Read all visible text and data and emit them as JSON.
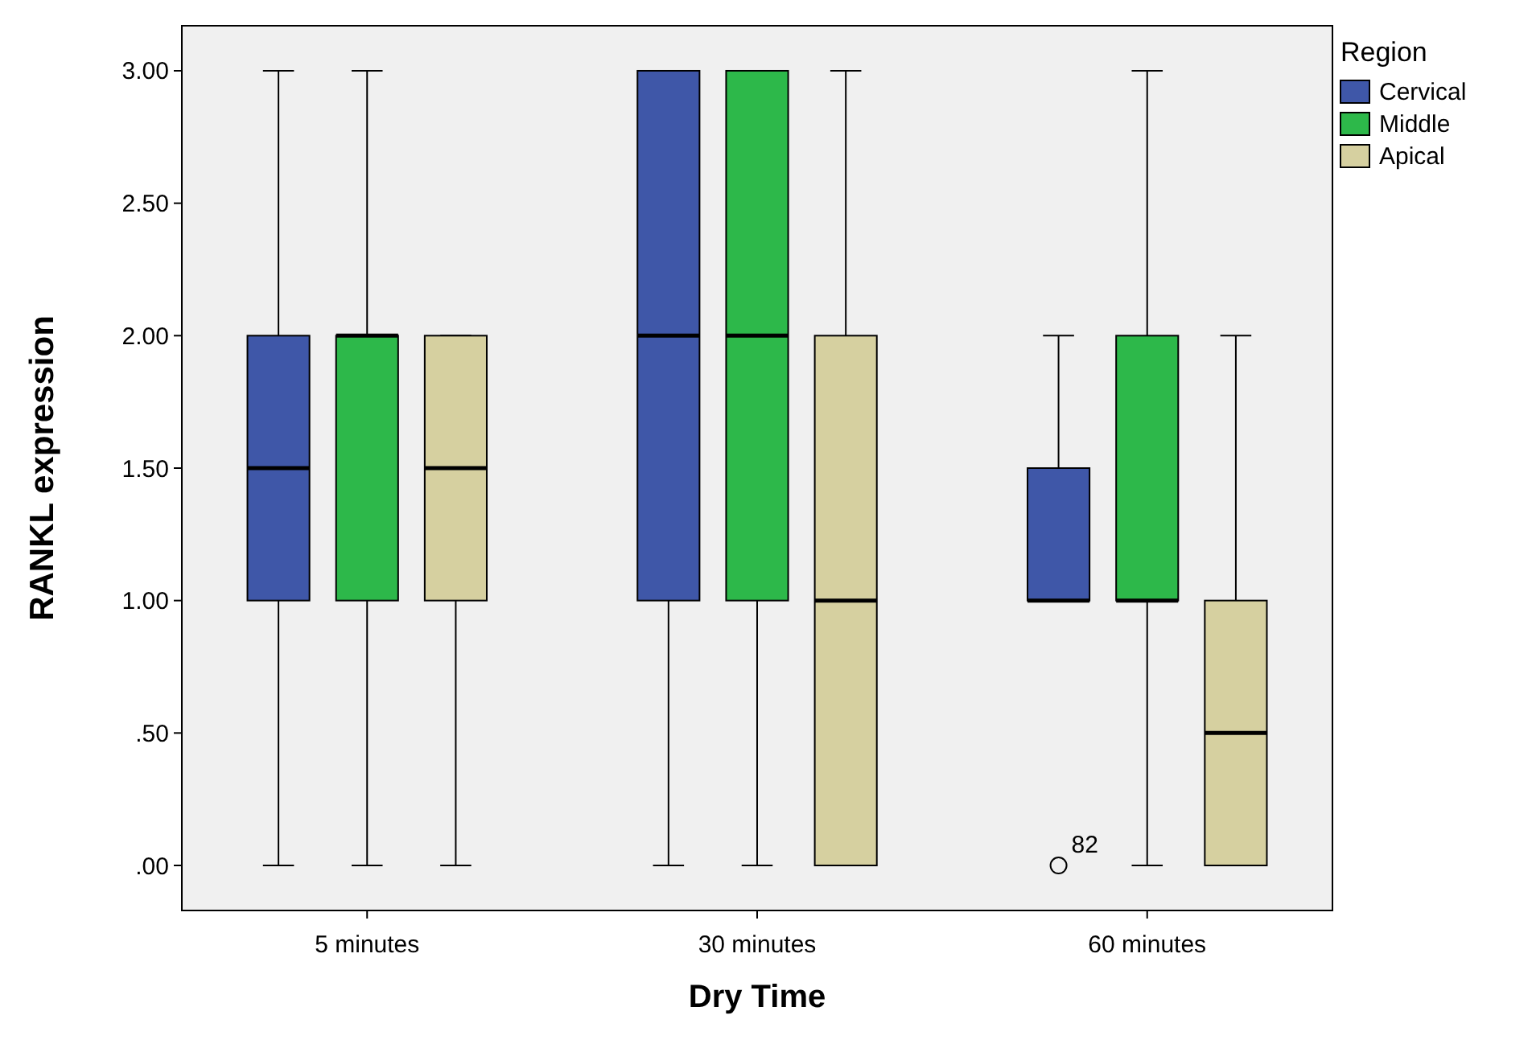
{
  "chart_data": {
    "type": "box",
    "xlabel": "Dry Time",
    "ylabel": "RANKL expression",
    "legend_title": "Region",
    "legend": "top right",
    "grid": false,
    "categories": [
      "5 minutes",
      "30 minutes",
      "60 minutes"
    ],
    "ylim": [
      -0.17,
      3.17
    ],
    "yticks": [
      {
        "value": 0,
        "label": ".00"
      },
      {
        "value": 0.5,
        "label": ".50"
      },
      {
        "value": 1,
        "label": "1.00"
      },
      {
        "value": 1.5,
        "label": "1.50"
      },
      {
        "value": 2,
        "label": "2.00"
      },
      {
        "value": 2.5,
        "label": "2.50"
      },
      {
        "value": 3,
        "label": "3.00"
      }
    ],
    "series": [
      {
        "name": "Cervical",
        "color": "#3f57a8",
        "boxes": [
          {
            "low": 0,
            "q1": 1,
            "median": 1.5,
            "q3": 2,
            "high": 3
          },
          {
            "low": 0,
            "q1": 1,
            "median": 2,
            "q3": 3,
            "high": 3
          },
          {
            "low": 1,
            "q1": 1,
            "median": 1,
            "q3": 1.5,
            "high": 2,
            "outliers": [
              0
            ]
          }
        ]
      },
      {
        "name": "Middle",
        "color": "#2db84a",
        "boxes": [
          {
            "low": 0,
            "q1": 1,
            "median": 2,
            "q3": 2,
            "high": 3
          },
          {
            "low": 0,
            "q1": 1,
            "median": 2,
            "q3": 3,
            "high": 3
          },
          {
            "low": 0,
            "q1": 1,
            "median": 1,
            "q3": 2,
            "high": 3
          }
        ]
      },
      {
        "name": "Apical",
        "color": "#d6d0a0",
        "boxes": [
          {
            "low": 0,
            "q1": 1,
            "median": 1.5,
            "q3": 2,
            "high": 2
          },
          {
            "low": 0,
            "q1": 0,
            "median": 1,
            "q3": 2,
            "high": 3
          },
          {
            "low": 0,
            "q1": 0,
            "median": 0.5,
            "q3": 1,
            "high": 2
          }
        ]
      }
    ],
    "annotations": [
      {
        "text": "82",
        "x": "60 minutes",
        "y": 0
      }
    ]
  }
}
